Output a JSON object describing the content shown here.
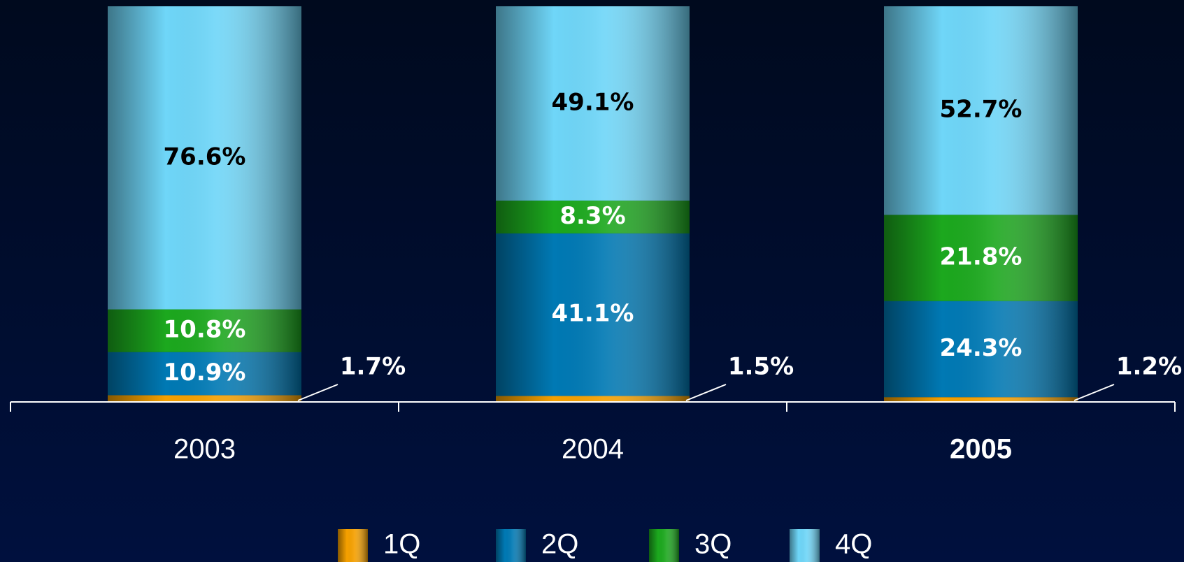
{
  "chart_data": {
    "type": "stacked_bar",
    "categories": [
      "2003",
      "2004",
      "2005"
    ],
    "ylim": [
      0,
      100
    ],
    "series": [
      {
        "name": "1Q",
        "color": "#f5a000",
        "values": [
          1.7,
          1.5,
          1.2
        ],
        "value_labels": [
          "1.7%",
          "1.5%",
          "1.2%"
        ]
      },
      {
        "name": "2Q",
        "color": "#0079b4",
        "values": [
          10.9,
          41.1,
          24.3
        ],
        "value_labels": [
          "10.9%",
          "41.1%",
          "24.3%"
        ]
      },
      {
        "name": "3Q",
        "color": "#1ca81e",
        "values": [
          10.8,
          8.3,
          21.8
        ],
        "value_labels": [
          "10.8%",
          "8.3%",
          "21.8%"
        ]
      },
      {
        "name": "4Q",
        "color": "#6fd6f8",
        "values": [
          76.6,
          49.1,
          52.7
        ],
        "value_labels": [
          "76.6%",
          "49.1%",
          "52.7%"
        ]
      }
    ]
  }
}
